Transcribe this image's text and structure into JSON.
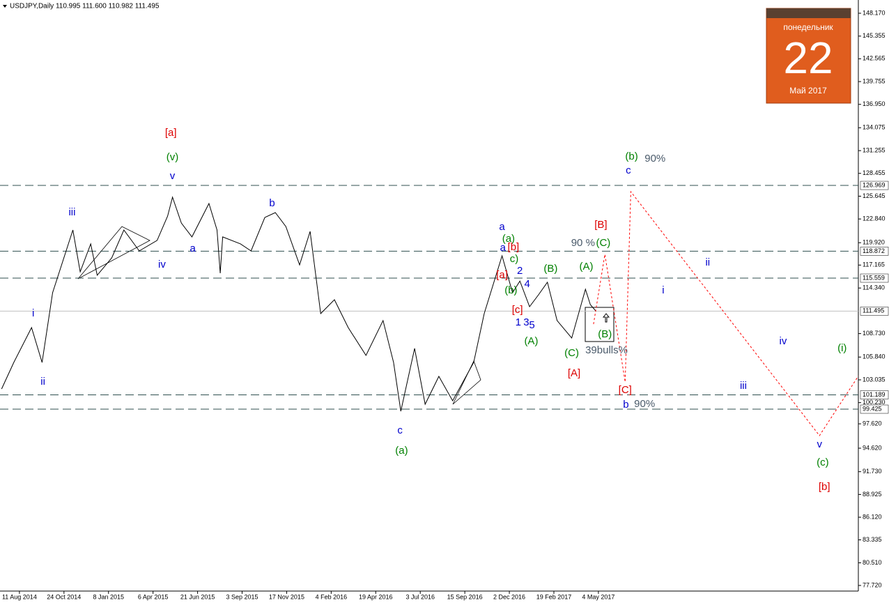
{
  "chart_data": {
    "type": "line",
    "header": "USDJPY,Daily  110.995 111.600 110.982 111.495",
    "calendar": {
      "weekday": "понедельник",
      "day": "22",
      "month": "Май 2017"
    },
    "xlim": [
      -20,
      1040
    ],
    "ylim": [
      77.03,
      149.8
    ],
    "xticks": [
      {
        "value": 4,
        "label": "11 Aug 2014"
      },
      {
        "value": 59,
        "label": "24 Oct 2014"
      },
      {
        "value": 114,
        "label": "8 Jan 2015"
      },
      {
        "value": 169,
        "label": "6 Apr 2015"
      },
      {
        "value": 224,
        "label": "21 Jun 2015"
      },
      {
        "value": 279,
        "label": "3 Sep 2015"
      },
      {
        "value": 334,
        "label": "17 Nov 2015"
      },
      {
        "value": 389,
        "label": "4 Feb 2016"
      },
      {
        "value": 444,
        "label": "19 Apr 2016"
      },
      {
        "value": 499,
        "label": "3 Jul 2016"
      },
      {
        "value": 554,
        "label": "15 Sep 2016"
      },
      {
        "value": 609,
        "label": "2 Dec 2016"
      },
      {
        "value": 664,
        "label": "19 Feb 2017"
      },
      {
        "value": 719,
        "label": "4 May 2017"
      }
    ],
    "yticks": [
      {
        "value": 148.17,
        "label": "148.170"
      },
      145.355,
      142.565,
      139.755,
      {
        "value": 136.95,
        "label": "136.950"
      },
      134.075,
      131.255,
      128.455,
      125.645,
      {
        "value": 122.84,
        "label": "122.840"
      },
      {
        "value": 119.92,
        "label": "119.920"
      },
      117.165,
      {
        "value": 114.34,
        "label": "114.340"
      },
      {
        "value": 108.73,
        "label": "108.730"
      },
      {
        "value": 105.84,
        "label": "105.840"
      },
      103.035,
      {
        "value": 100.23,
        "label": "100.230"
      },
      {
        "value": 97.62,
        "label": "97.620"
      },
      {
        "value": 94.62,
        "label": "94.620"
      },
      {
        "value": 91.73,
        "label": "91.730"
      },
      88.925,
      {
        "value": 86.12,
        "label": "86.120"
      },
      83.335,
      {
        "value": 80.51,
        "label": "80.510"
      },
      {
        "value": 77.72,
        "label": "77.720"
      }
    ],
    "levels": [
      126.969,
      118.872,
      115.559,
      101.189,
      99.425
    ],
    "current": 111.495,
    "series": [
      {
        "color": "#000000",
        "x": [
          -18,
          -3,
          19,
          32,
          45,
          70,
          79,
          92,
          100,
          118,
          133,
          152,
          174,
          187,
          193,
          204,
          217,
          238,
          248,
          252,
          255,
          277,
          290,
          307,
          320,
          333,
          350,
          363,
          376,
          393,
          410,
          432,
          453,
          466,
          475,
          492,
          505,
          522,
          539,
          565,
          578,
          600,
          613,
          622,
          634,
          645,
          656,
          668,
          686,
          703,
          709,
          716
        ],
        "values": [
          101.92,
          105.18,
          109.47,
          105.18,
          113.76,
          121.48,
          116.33,
          119.77,
          115.91,
          118.05,
          121.48,
          118.91,
          120.2,
          123.2,
          125.52,
          122.34,
          120.63,
          124.74,
          121.48,
          116.16,
          120.63,
          119.77,
          118.91,
          123.03,
          123.63,
          121.91,
          117.19,
          121.31,
          111.19,
          112.9,
          109.47,
          106.04,
          110.33,
          105.18,
          99.17,
          106.9,
          100.03,
          103.46,
          100.46,
          105.18,
          111.19,
          118.31,
          113.76,
          115.2,
          112.04,
          113.5,
          115.05,
          110.33,
          108.18,
          114.19,
          112.3,
          111.495
        ]
      },
      {
        "color": "#ff0000",
        "x": [
          713,
          727,
          752,
          759,
          992,
          1040
        ],
        "values": [
          109.9,
          118.48,
          102.77,
          126.2,
          96.17,
          103.5
        ]
      }
    ],
    "annotations": [
      {
        "text": "[a]",
        "color": "#dd0000",
        "x": 191,
        "y": 133.41
      },
      {
        "text": "(v)",
        "color": "#008000",
        "x": 193,
        "y": 130.41
      },
      {
        "text": "v",
        "color": "#0000cc",
        "x": 193,
        "y": 128.09
      },
      {
        "text": "iii",
        "color": "#0000cc",
        "x": 69,
        "y": 123.63
      },
      {
        "text": "a",
        "color": "#0000cc",
        "x": 218,
        "y": 119.17
      },
      {
        "text": "iv",
        "color": "#0000cc",
        "x": 180,
        "y": 117.19
      },
      {
        "text": "b",
        "color": "#0000cc",
        "x": 316,
        "y": 124.74
      },
      {
        "text": "ii",
        "color": "#0000cc",
        "x": 33,
        "y": 102.78
      },
      {
        "text": "i",
        "color": "#0000cc",
        "x": 21,
        "y": 111.19
      },
      {
        "text": "c",
        "color": "#0000cc",
        "x": 474,
        "y": 96.77
      },
      {
        "text": "(a)",
        "color": "#008000",
        "x": 476,
        "y": 94.28
      },
      {
        "text": "a",
        "color": "#0000cc",
        "x": 600,
        "y": 121.83
      },
      {
        "text": "(a)",
        "color": "#008000",
        "x": 608,
        "y": 120.37
      },
      {
        "text": "a",
        "color": "#0000cc",
        "x": 601,
        "y": 119.25
      },
      {
        "text": "[b]",
        "color": "#dd0000",
        "x": 614,
        "y": 119.34
      },
      {
        "text": "c)",
        "color": "#008000",
        "x": 615,
        "y": 117.88
      },
      {
        "text": "[a]",
        "color": "#dd0000",
        "x": 600,
        "y": 115.9
      },
      {
        "text": "(b)",
        "color": "#008000",
        "x": 611,
        "y": 114.02
      },
      {
        "text": "2",
        "color": "#0000cc",
        "x": 622,
        "y": 116.42
      },
      {
        "text": "4",
        "color": "#0000cc",
        "x": 631,
        "y": 114.79
      },
      {
        "text": "[c]",
        "color": "#dd0000",
        "x": 619,
        "y": 111.61
      },
      {
        "text": "1",
        "color": "#0000cc",
        "x": 620,
        "y": 110.07
      },
      {
        "text": "3",
        "color": "#0000cc",
        "x": 630,
        "y": 110.07
      },
      {
        "text": "5",
        "color": "#0000cc",
        "x": 637,
        "y": 109.73
      },
      {
        "text": "(A)",
        "color": "#008000",
        "x": 636,
        "y": 107.75
      },
      {
        "text": "(B)",
        "color": "#008000",
        "x": 660,
        "y": 116.68
      },
      {
        "text": "(C)",
        "color": "#008000",
        "x": 686,
        "y": 106.29
      },
      {
        "text": "[A]",
        "color": "#dd0000",
        "x": 689,
        "y": 103.81
      },
      {
        "text": "(A)",
        "color": "#008000",
        "x": 704,
        "y": 116.93
      },
      {
        "text": "[B]",
        "color": "#dd0000",
        "x": 722,
        "y": 122.08
      },
      {
        "text": "90 %",
        "color": "#4a5a6a",
        "x": 700,
        "y": 119.85
      },
      {
        "text": "(C)",
        "color": "#008000",
        "x": 725,
        "y": 119.85
      },
      {
        "text": "(B)",
        "color": "#008000",
        "x": 727,
        "y": 108.61
      },
      {
        "text": "39bulls%",
        "color": "#4a5a6a",
        "x": 729,
        "y": 106.64
      },
      {
        "text": "(b)",
        "color": "#008000",
        "x": 760,
        "y": 130.49
      },
      {
        "text": "90%",
        "color": "#4a5a6a",
        "x": 789,
        "y": 130.24
      },
      {
        "text": "c",
        "color": "#0000cc",
        "x": 756,
        "y": 128.78
      },
      {
        "text": "[C]",
        "color": "#dd0000",
        "x": 752,
        "y": 101.75
      },
      {
        "text": "b",
        "color": "#0000cc",
        "x": 753,
        "y": 99.94
      },
      {
        "text": "90%",
        "color": "#4a5a6a",
        "x": 776,
        "y": 100.03
      },
      {
        "text": "ii",
        "color": "#0000cc",
        "x": 854,
        "y": 117.45
      },
      {
        "text": "i",
        "color": "#0000cc",
        "x": 799,
        "y": 114.02
      },
      {
        "text": "iv",
        "color": "#0000cc",
        "x": 947,
        "y": 107.75
      },
      {
        "text": "iii",
        "color": "#0000cc",
        "x": 898,
        "y": 102.26
      },
      {
        "text": "(i)",
        "color": "#008000",
        "x": 1020,
        "y": 106.9
      },
      {
        "text": "v",
        "color": "#0000cc",
        "x": 992,
        "y": 95.05
      },
      {
        "text": "(c)",
        "color": "#008000",
        "x": 996,
        "y": 92.82
      },
      {
        "text": "[b]",
        "color": "#dd0000",
        "x": 998,
        "y": 89.82
      }
    ]
  }
}
